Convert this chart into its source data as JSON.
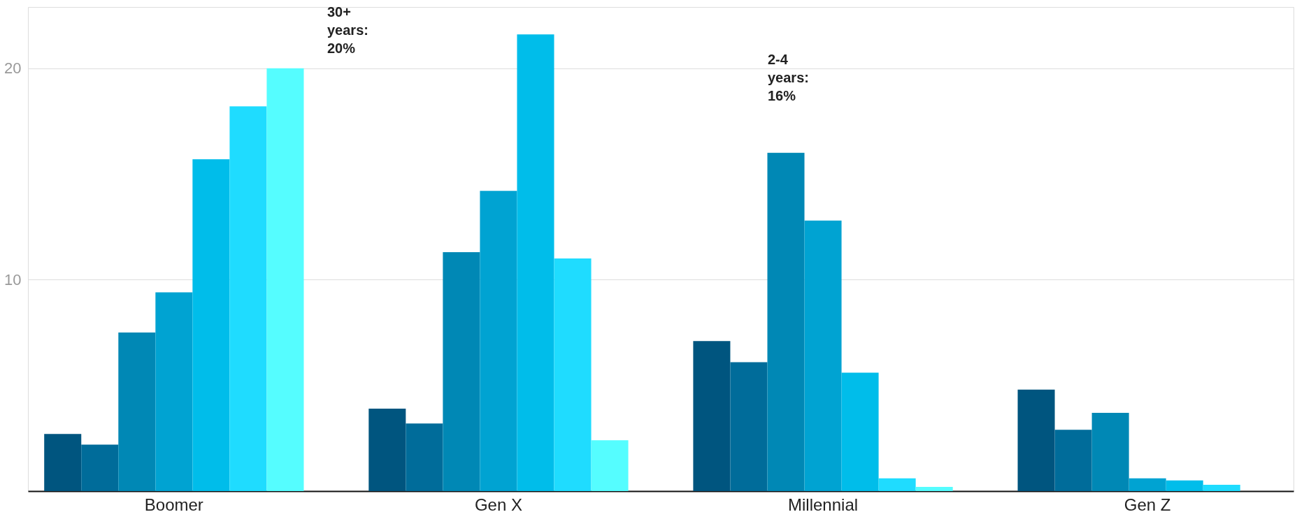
{
  "chart_data": {
    "type": "bar",
    "categories": [
      "Boomer",
      "Gen X",
      "Millennial",
      "Gen Z"
    ],
    "series": [
      {
        "color": "#00557f",
        "values": [
          2.7,
          3.9,
          7.1,
          4.8
        ]
      },
      {
        "color": "#006c9a",
        "values": [
          2.2,
          3.2,
          6.1,
          2.9
        ]
      },
      {
        "color": "#0088b5",
        "values": [
          7.5,
          11.3,
          16,
          3.7
        ]
      },
      {
        "color": "#00a3d2",
        "values": [
          9.4,
          14.2,
          12.8,
          0.6
        ]
      },
      {
        "color": "#00bdea",
        "values": [
          15.7,
          21.6,
          5.6,
          0.5
        ]
      },
      {
        "color": "#1fdcff",
        "values": [
          18.2,
          11.0,
          0.6,
          0.3
        ]
      },
      {
        "color": "#55fdff",
        "values": [
          20,
          2.4,
          0.2,
          null
        ]
      }
    ],
    "ylim": [
      0,
      22.9
    ],
    "yticks": [
      10,
      20
    ],
    "grid": "y",
    "annotations": [
      "30+ years: 20%",
      "2-4 years: 16%"
    ]
  }
}
